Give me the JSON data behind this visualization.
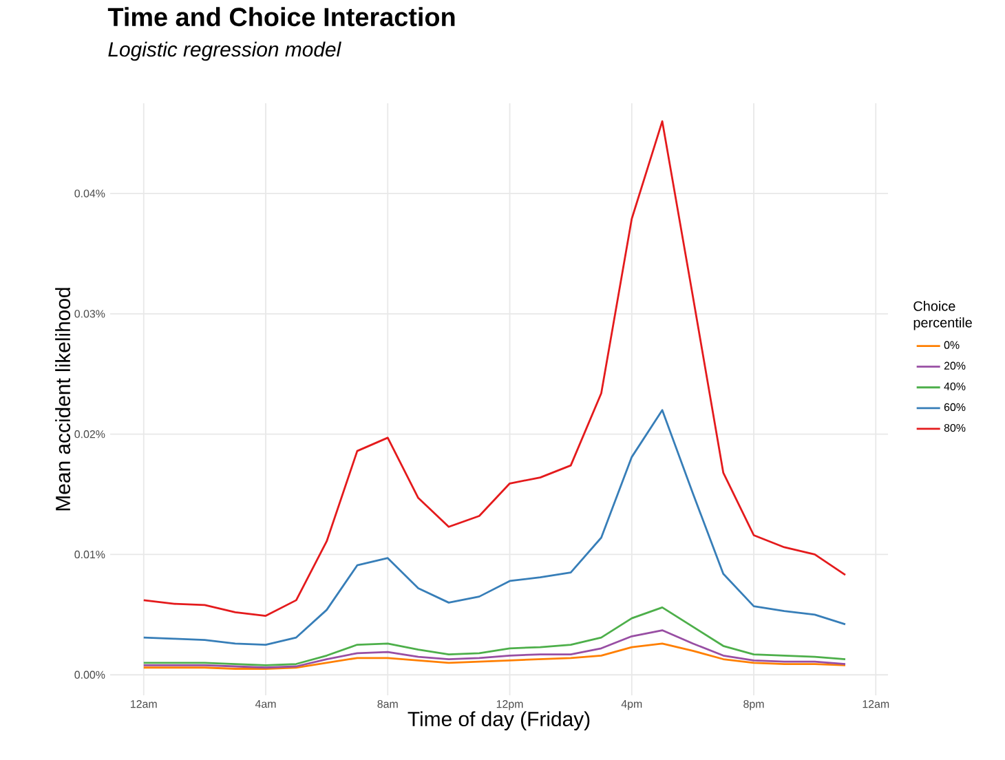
{
  "chart_data": {
    "type": "line",
    "title": "Time and Choice Interaction",
    "subtitle": "*Logistic regression model*",
    "xlabel": "Time of day (Friday)",
    "ylabel": "Mean accident likelihood",
    "legend_title": "Choice percentile",
    "categories": [
      "12am",
      null,
      null,
      null,
      "4am",
      null,
      null,
      null,
      "8am",
      null,
      null,
      null,
      "12pm",
      null,
      null,
      null,
      "4pm",
      null,
      null,
      null,
      "8pm",
      null,
      null,
      null,
      "12am"
    ],
    "series": [
      {
        "name": "0%",
        "color": "#ff7f00",
        "values": [
          0.0006,
          0.0006,
          0.0006,
          0.0005,
          0.0005,
          0.0006,
          0.001,
          0.0014,
          0.0014,
          0.0012,
          0.001,
          0.0011,
          0.0012,
          0.0013,
          0.0014,
          0.0016,
          0.0023,
          0.0026,
          0.002,
          0.0013,
          0.001,
          0.0009,
          0.0009,
          0.0008,
          null
        ]
      },
      {
        "name": "20%",
        "color": "#984ea3",
        "values": [
          0.0008,
          0.0008,
          0.0008,
          0.0007,
          0.0006,
          0.0007,
          0.0013,
          0.0018,
          0.0019,
          0.0015,
          0.0013,
          0.0014,
          0.0016,
          0.0017,
          0.0017,
          0.0022,
          0.0032,
          0.0037,
          0.0026,
          0.0016,
          0.0012,
          0.0011,
          0.0011,
          0.0009,
          null
        ]
      },
      {
        "name": "40%",
        "color": "#4daf4a",
        "values": [
          0.001,
          0.001,
          0.001,
          0.0009,
          0.0008,
          0.0009,
          0.0016,
          0.0025,
          0.0026,
          0.0021,
          0.0017,
          0.0018,
          0.0022,
          0.0023,
          0.0025,
          0.0031,
          0.0047,
          0.0056,
          0.004,
          0.0024,
          0.0017,
          0.0016,
          0.0015,
          0.0013,
          null
        ]
      },
      {
        "name": "60%",
        "color": "#377eb8",
        "values": [
          0.0031,
          0.003,
          0.0029,
          0.0026,
          0.0025,
          0.0031,
          0.0054,
          0.0091,
          0.0097,
          0.0072,
          0.006,
          0.0065,
          0.0078,
          0.0081,
          0.0085,
          0.0114,
          0.0181,
          0.022,
          0.0151,
          0.0084,
          0.0057,
          0.0053,
          0.005,
          0.0042,
          null
        ]
      },
      {
        "name": "80%",
        "color": "#e41a1c",
        "values": [
          0.0062,
          0.0059,
          0.0058,
          0.0052,
          0.0049,
          0.0062,
          0.0111,
          0.0186,
          0.0197,
          0.0147,
          0.0123,
          0.0132,
          0.0159,
          0.0164,
          0.0174,
          0.0234,
          0.0379,
          0.046,
          0.0315,
          0.0168,
          0.0116,
          0.0106,
          0.01,
          0.0083,
          null
        ]
      }
    ],
    "ylim": [
      -0.0017,
      0.0475
    ],
    "yticks": [
      {
        "value": 0,
        "label": "0.00%"
      },
      {
        "value": 0.01,
        "label": "0.01%"
      },
      {
        "value": 0.02,
        "label": "0.02%"
      },
      {
        "value": 0.03,
        "label": "0.03%"
      },
      {
        "value": 0.04,
        "label": "0.04%"
      }
    ],
    "grid": true,
    "legend": "right",
    "line_style": "solid"
  }
}
